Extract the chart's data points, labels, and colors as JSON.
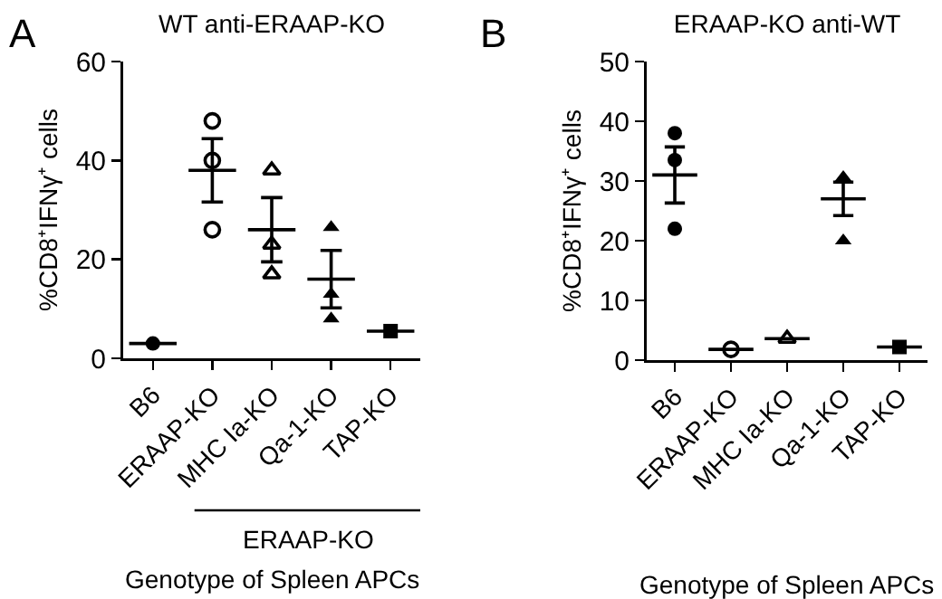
{
  "chart_data": [
    {
      "type": "scatter",
      "title": "WT anti-ERAAP-KO",
      "xlabel": "Genotype of Spleen APCs",
      "ylabel": "%CD8⁺IFNγ⁺ cells",
      "annotations": [
        "A",
        "ERAAP-KO"
      ],
      "categories": [
        "B6",
        "ERAAP-KO",
        "MHC Ia-KO",
        "Qa-1-KO",
        "TAP-KO"
      ],
      "ylim": [
        0,
        60
      ],
      "yticks": [
        0,
        20,
        40,
        60
      ],
      "series": [
        {
          "color": "#000000",
          "marker": "circle",
          "x": [
            "B6"
          ],
          "values": [
            3
          ]
        },
        {
          "color": "#000000",
          "marker": "circle-open",
          "x": [
            "ERAAP-KO",
            "ERAAP-KO",
            "ERAAP-KO"
          ],
          "values": [
            48,
            40,
            26
          ]
        },
        {
          "color": "#000000",
          "marker": "triangle-open",
          "x": [
            "MHC Ia-KO",
            "MHC Ia-KO",
            "MHC Ia-KO"
          ],
          "values": [
            38,
            23,
            17
          ]
        },
        {
          "color": "#000000",
          "marker": "triangle",
          "x": [
            "Qa-1-KO",
            "Qa-1-KO",
            "Qa-1-KO"
          ],
          "values": [
            26.5,
            13,
            8
          ]
        },
        {
          "color": "#000000",
          "marker": "square",
          "x": [
            "TAP-KO"
          ],
          "values": [
            5.5
          ]
        },
        {
          "type": "box",
          "color": "#000000",
          "boxes": [
            {
              "low": 3,
              "q1": 3,
              "median": 3,
              "q3": 3,
              "high": 3
            },
            {
              "low": 31.6,
              "q1": 38,
              "median": 38,
              "q3": 38,
              "high": 44.4
            },
            {
              "low": 19.5,
              "q1": 26,
              "median": 26,
              "q3": 26,
              "high": 32.5
            },
            {
              "low": 10.2,
              "q1": 16,
              "median": 16,
              "q3": 16,
              "high": 21.8
            },
            {
              "low": 5.5,
              "q1": 5.5,
              "median": 5.5,
              "q3": 5.5,
              "high": 5.5
            }
          ]
        }
      ]
    },
    {
      "type": "scatter",
      "title": "ERAAP-KO anti-WT",
      "xlabel": "Genotype of Spleen APCs",
      "ylabel": "%CD8⁺IFNγ⁺ cells",
      "annotations": [
        "B"
      ],
      "categories": [
        "B6",
        "ERAAP-KO",
        "MHC Ia-KO",
        "Qa-1-KO",
        "TAP-KO"
      ],
      "ylim": [
        0,
        50
      ],
      "yticks": [
        0,
        10,
        20,
        30,
        40,
        50
      ],
      "series": [
        {
          "color": "#000000",
          "marker": "circle",
          "x": [
            "B6",
            "B6",
            "B6"
          ],
          "values": [
            38,
            33.5,
            22
          ]
        },
        {
          "color": "#000000",
          "marker": "circle-open",
          "x": [
            "ERAAP-KO"
          ],
          "values": [
            1.8
          ]
        },
        {
          "color": "#000000",
          "marker": "triangle-open",
          "x": [
            "MHC Ia-KO"
          ],
          "values": [
            3.6
          ]
        },
        {
          "color": "#000000",
          "marker": "triangle",
          "x": [
            "Qa-1-KO",
            "Qa-1-KO"
          ],
          "values": [
            30.6,
            20
          ]
        },
        {
          "color": "#000000",
          "marker": "square",
          "x": [
            "TAP-KO"
          ],
          "values": [
            2.2
          ]
        },
        {
          "type": "box",
          "color": "#000000",
          "boxes": [
            {
              "low": 26.3,
              "q1": 31,
              "median": 31,
              "q3": 31,
              "high": 35.7
            },
            {
              "low": 1.8,
              "q1": 1.8,
              "median": 1.8,
              "q3": 1.8,
              "high": 1.8
            },
            {
              "low": 3.6,
              "q1": 3.6,
              "median": 3.6,
              "q3": 3.6,
              "high": 3.6
            },
            {
              "low": 24.2,
              "q1": 27,
              "median": 27,
              "q3": 27,
              "high": 29.8
            },
            {
              "low": 2.2,
              "q1": 2.2,
              "median": 2.2,
              "q3": 2.2,
              "high": 2.2
            }
          ]
        }
      ]
    }
  ]
}
